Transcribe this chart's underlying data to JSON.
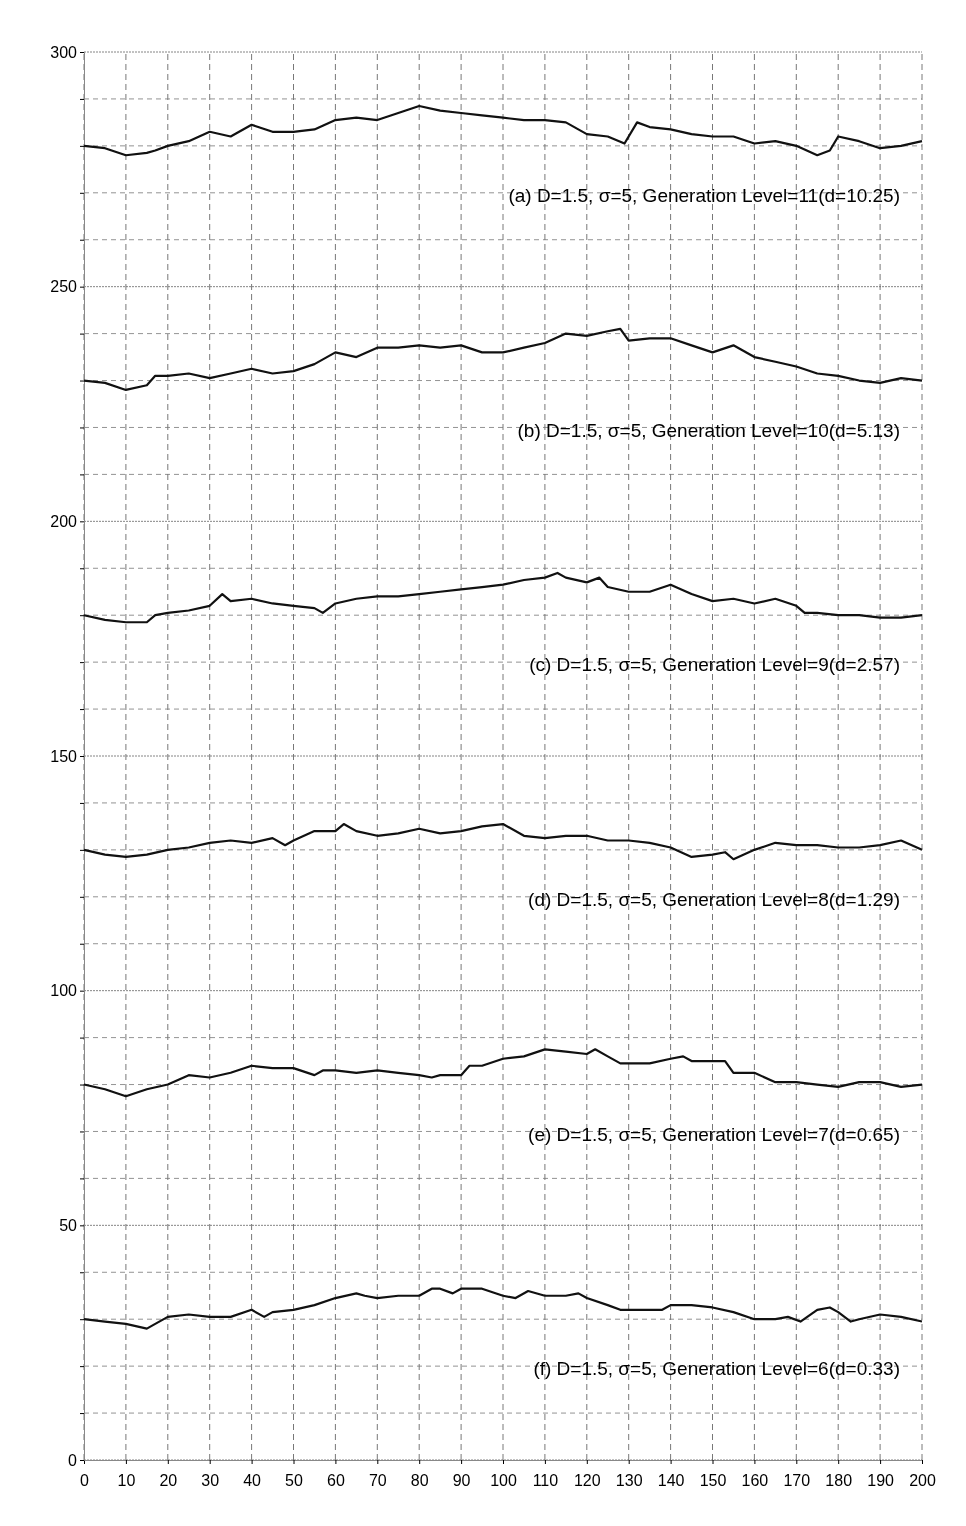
{
  "chart_data": {
    "type": "line",
    "xlim": [
      0,
      200
    ],
    "ylim": [
      0,
      300
    ],
    "xticks": [
      0,
      10,
      20,
      30,
      40,
      50,
      60,
      70,
      80,
      90,
      100,
      110,
      120,
      130,
      140,
      150,
      160,
      170,
      180,
      190,
      200
    ],
    "yticks": [
      0,
      {
        "value": 10,
        "label": null
      },
      {
        "value": 20,
        "label": null
      },
      {
        "value": 30,
        "label": null
      },
      {
        "value": 40,
        "label": null
      },
      50,
      {
        "value": 60,
        "label": null
      },
      {
        "value": 70,
        "label": null
      },
      {
        "value": 80,
        "label": null
      },
      {
        "value": 90,
        "label": null
      },
      100,
      {
        "value": 110,
        "label": null
      },
      {
        "value": 120,
        "label": null
      },
      {
        "value": 130,
        "label": null
      },
      {
        "value": 140,
        "label": null
      },
      150,
      {
        "value": 160,
        "label": null
      },
      {
        "value": 170,
        "label": null
      },
      {
        "value": 180,
        "label": null
      },
      {
        "value": 190,
        "label": null
      },
      200,
      {
        "value": 210,
        "label": null
      },
      {
        "value": 220,
        "label": null
      },
      {
        "value": 230,
        "label": null
      },
      {
        "value": 240,
        "label": null
      },
      250,
      {
        "value": 260,
        "label": null
      },
      {
        "value": 270,
        "label": null
      },
      {
        "value": 280,
        "label": null
      },
      {
        "value": 290,
        "label": null
      },
      300
    ],
    "grid": true,
    "marker": "none",
    "line_style": "solid",
    "series": [
      {
        "name": "(a)  D=1.5, σ=5, Generation Level=11(d=10.25)",
        "color": "#111111",
        "x": [
          0,
          5,
          10,
          15,
          17,
          20,
          25,
          30,
          35,
          40,
          45,
          50,
          55,
          60,
          65,
          70,
          75,
          80,
          85,
          90,
          95,
          100,
          105,
          110,
          115,
          120,
          125,
          129,
          132,
          135,
          140,
          145,
          150,
          155,
          160,
          165,
          170,
          175,
          178,
          180,
          185,
          190,
          195,
          200
        ],
        "values": [
          280,
          279.5,
          278,
          278.5,
          279,
          280,
          281,
          283,
          282,
          284.5,
          283,
          283,
          283.5,
          285.5,
          286,
          285.5,
          287,
          288.5,
          287.5,
          287,
          286.5,
          286,
          285.5,
          285.5,
          285,
          282.5,
          282,
          280.5,
          285,
          284,
          283.5,
          282.5,
          282,
          282,
          280.5,
          281,
          280,
          278,
          279,
          282,
          281,
          279.5,
          280,
          281
        ]
      },
      {
        "name": "(b)  D=1.5, σ=5, Generation Level=10(d=5.13)",
        "color": "#111111",
        "x": [
          0,
          5,
          10,
          15,
          17,
          20,
          25,
          30,
          35,
          40,
          45,
          50,
          55,
          60,
          65,
          70,
          75,
          80,
          85,
          90,
          95,
          100,
          105,
          110,
          115,
          120,
          125,
          128,
          130,
          135,
          140,
          145,
          150,
          155,
          160,
          165,
          170,
          175,
          180,
          185,
          190,
          195,
          200
        ],
        "values": [
          230,
          229.5,
          228,
          229,
          231,
          231,
          231.5,
          230.5,
          231.5,
          232.5,
          231.5,
          232,
          233.5,
          236,
          235,
          237,
          237,
          237.5,
          237,
          237.5,
          236,
          236,
          237,
          238,
          240,
          239.5,
          240.5,
          241,
          238.5,
          239,
          239,
          237.5,
          236,
          237.5,
          235,
          234,
          233,
          231.5,
          231,
          230,
          229.5,
          230.5,
          230
        ]
      },
      {
        "name": "(c)  D=1.5, σ=5, Generation Level=9(d=2.57)",
        "color": "#111111",
        "x": [
          0,
          5,
          10,
          15,
          17,
          20,
          25,
          30,
          33,
          35,
          40,
          45,
          50,
          55,
          57,
          60,
          65,
          70,
          75,
          80,
          85,
          90,
          95,
          100,
          105,
          110,
          113,
          115,
          120,
          123,
          125,
          130,
          135,
          140,
          145,
          150,
          155,
          160,
          165,
          170,
          172,
          175,
          180,
          185,
          190,
          195,
          200
        ],
        "values": [
          180,
          179,
          178.5,
          178.5,
          180,
          180.5,
          181,
          182,
          184.5,
          183,
          183.5,
          182.5,
          182,
          181.5,
          180.5,
          182.5,
          183.5,
          184,
          184,
          184.5,
          185,
          185.5,
          186,
          186.5,
          187.5,
          188,
          189,
          188,
          187,
          188,
          186,
          185,
          185,
          186.5,
          184.5,
          183,
          183.5,
          182.5,
          183.5,
          182,
          180.5,
          180.5,
          180,
          180,
          179.5,
          179.5,
          180
        ]
      },
      {
        "name": "(d)  D=1.5, σ=5, Generation Level=8(d=1.29)",
        "color": "#111111",
        "x": [
          0,
          5,
          10,
          15,
          20,
          25,
          30,
          35,
          40,
          45,
          48,
          50,
          55,
          60,
          62,
          65,
          70,
          75,
          80,
          85,
          90,
          95,
          100,
          105,
          110,
          115,
          120,
          125,
          130,
          135,
          140,
          145,
          150,
          153,
          155,
          160,
          165,
          170,
          175,
          180,
          185,
          190,
          195,
          200
        ],
        "values": [
          130,
          129,
          128.5,
          129,
          130,
          130.5,
          131.5,
          132,
          131.5,
          132.5,
          131,
          132,
          134,
          134,
          135.5,
          134,
          133,
          133.5,
          134.5,
          133.5,
          134,
          135,
          135.5,
          133,
          132.5,
          133,
          133,
          132,
          132,
          131.5,
          130.5,
          128.5,
          129,
          129.5,
          128,
          130,
          131.5,
          131,
          131,
          130.5,
          130.5,
          131,
          132,
          130
        ]
      },
      {
        "name": "(e)  D=1.5, σ=5, Generation Level=7(d=0.65)",
        "color": "#111111",
        "x": [
          0,
          5,
          10,
          15,
          20,
          25,
          30,
          35,
          40,
          45,
          50,
          55,
          57,
          60,
          65,
          70,
          75,
          80,
          83,
          85,
          90,
          92,
          95,
          100,
          105,
          110,
          115,
          120,
          122,
          125,
          128,
          130,
          135,
          140,
          143,
          145,
          150,
          153,
          155,
          160,
          165,
          170,
          175,
          180,
          185,
          190,
          195,
          200
        ],
        "values": [
          80,
          79,
          77.5,
          79,
          80,
          82,
          81.5,
          82.5,
          84,
          83.5,
          83.5,
          82,
          83,
          83,
          82.5,
          83,
          82.5,
          82,
          81.5,
          82,
          82,
          84,
          84,
          85.5,
          86,
          87.5,
          87,
          86.5,
          87.5,
          86,
          84.5,
          84.5,
          84.5,
          85.5,
          86,
          85,
          85,
          85,
          82.5,
          82.5,
          80.5,
          80.5,
          80,
          79.5,
          80.5,
          80.5,
          79.5,
          80
        ]
      },
      {
        "name": "(f)  D=1.5, σ=5, Generation Level=6(d=0.33)",
        "color": "#111111",
        "x": [
          0,
          5,
          10,
          15,
          17,
          20,
          25,
          30,
          35,
          40,
          43,
          45,
          50,
          55,
          60,
          65,
          67,
          70,
          75,
          80,
          83,
          85,
          88,
          90,
          95,
          100,
          103,
          106,
          110,
          115,
          118,
          120,
          125,
          128,
          135,
          138,
          140,
          145,
          150,
          155,
          160,
          165,
          168,
          171,
          175,
          178,
          180,
          183,
          185,
          190,
          195,
          200
        ],
        "values": [
          30,
          29.5,
          29,
          28,
          29,
          30.5,
          31,
          30.5,
          30.5,
          32,
          30.5,
          31.5,
          32,
          33,
          34.5,
          35.5,
          35,
          34.5,
          35,
          35,
          36.5,
          36.5,
          35.5,
          36.5,
          36.5,
          35,
          34.5,
          36,
          35,
          35,
          35.5,
          34.5,
          33,
          32,
          32,
          32,
          33,
          33,
          32.5,
          31.5,
          30,
          30,
          30.5,
          29.5,
          32,
          32.5,
          31.5,
          29.5,
          30,
          31,
          30.5,
          29.5
        ]
      }
    ]
  }
}
